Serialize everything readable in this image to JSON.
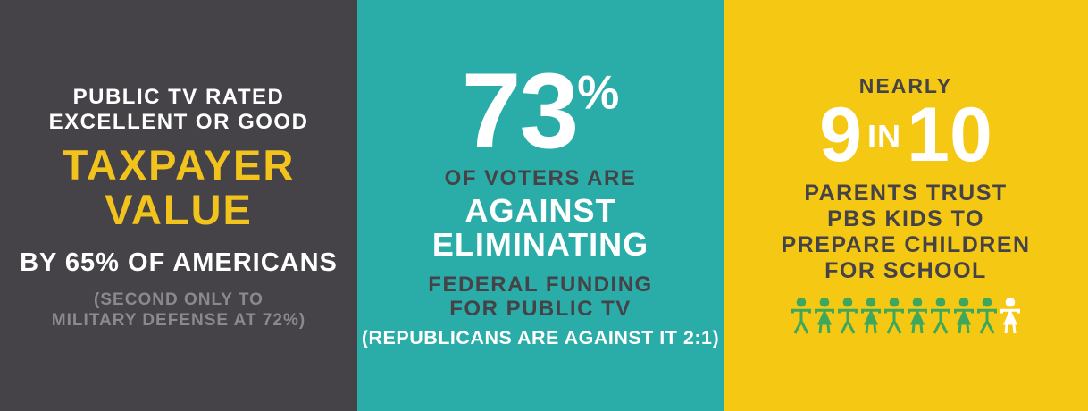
{
  "title": "Public television support infographic",
  "colors": {
    "dark_gray": "#454347",
    "teal": "#2AACA8",
    "yellow": "#F5C813",
    "highlight_yellow": "#F2C31C",
    "muted_gray": "#8B898C",
    "green": "#3FA75C",
    "white": "#FFFFFF"
  },
  "panels": {
    "taxpayer": {
      "bg_color": "#454347",
      "heading_lines": [
        "PUBLIC TV RATED",
        "EXCELLENT OR GOOD"
      ],
      "highlight_lines": [
        "TAXPAYER",
        "VALUE"
      ],
      "subheading": "BY 65% OF AMERICANS",
      "footnote_lines": [
        "(SECOND ONLY TO",
        "MILITARY DEFENSE AT 72%)"
      ]
    },
    "voters": {
      "bg_color": "#2AACA8",
      "stat_value": "73",
      "stat_unit": "%",
      "lead": "OF VOTERS ARE",
      "emphasis_lines": [
        "AGAINST",
        "ELIMINATING"
      ],
      "detail_lines": [
        "FEDERAL FUNDING",
        "FOR PUBLIC TV"
      ],
      "footnote": "(REPUBLICANS ARE AGAINST IT 2:1)"
    },
    "parents": {
      "bg_color": "#F5C813",
      "kicker": "NEARLY",
      "stat_parts": {
        "first": "9",
        "middle": "IN",
        "last": "10"
      },
      "detail_lines": [
        "PARENTS TRUST",
        "PBS KIDS TO",
        "PREPARE CHILDREN",
        "FOR SCHOOL"
      ],
      "pictogram": {
        "total": 10,
        "filled": 9,
        "filled_color": "#3FA75C",
        "unfilled_color": "#FFFFFF",
        "icon": "child-figure"
      }
    }
  },
  "chart_data": {
    "type": "table",
    "title": "Public television support statistics",
    "rows": [
      {
        "stat": "65%",
        "description": "of Americans rate public TV excellent or good taxpayer value",
        "note": "second only to military defense at 72%"
      },
      {
        "stat": "73%",
        "description": "of voters are against eliminating federal funding for public TV",
        "note": "Republicans are against it 2:1"
      },
      {
        "stat": "9 in 10",
        "description": "parents trust PBS KIDS to prepare children for school",
        "note": "nearly 9 in 10; pictogram shows 9 of 10 child figures highlighted green, 1 white"
      }
    ]
  }
}
